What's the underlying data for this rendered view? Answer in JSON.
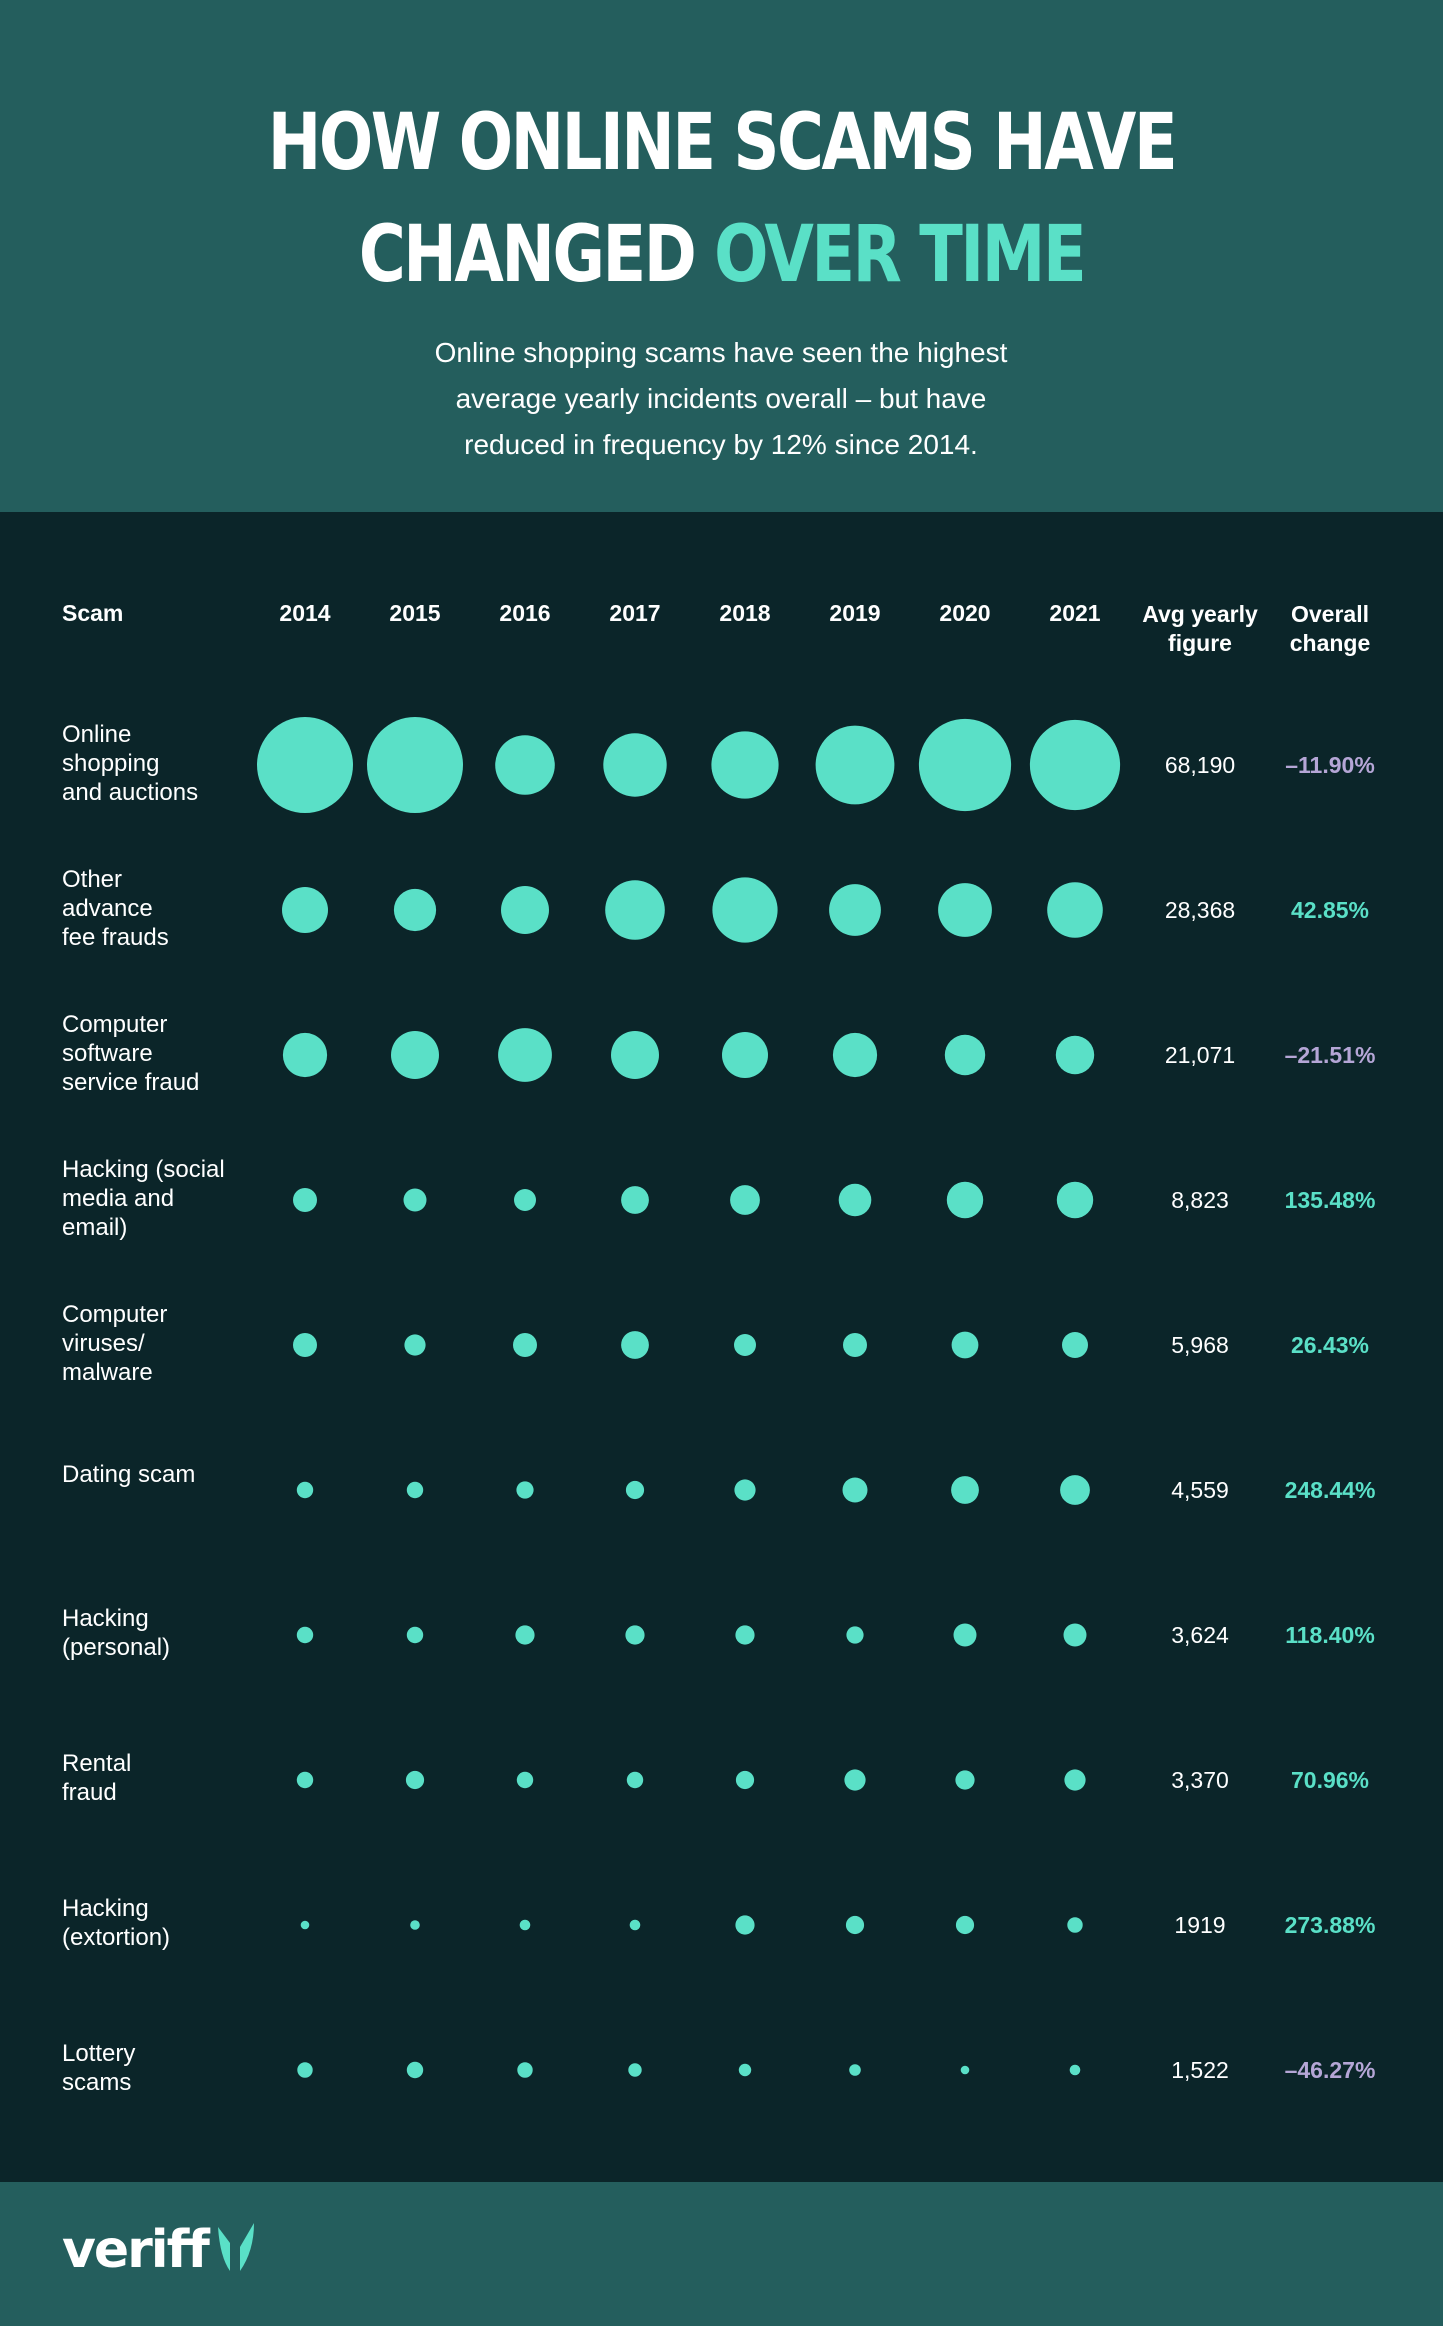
{
  "header": {
    "title_line1": "HOW ONLINE SCAMS HAVE",
    "title_line2_a": "CHANGED ",
    "title_line2_b": "OVER TIME",
    "subtitle_line1": "Online shopping scams have seen the highest",
    "subtitle_line2": "average yearly incidents overall – but have",
    "subtitle_line3": "reduced in frequency by 12% since 2014."
  },
  "colors": {
    "header_bg": "#245e5d",
    "chart_bg": "#0b2529",
    "accent": "#5ae0c7",
    "bubble": "#5ae0c7",
    "negative": "#b5a6d6",
    "positive": "#5ae0c7"
  },
  "columns": {
    "scam": "Scam",
    "years": [
      "2014",
      "2015",
      "2016",
      "2017",
      "2018",
      "2019",
      "2020",
      "2021"
    ],
    "avg_line1": "Avg yearly",
    "avg_line2": "figure",
    "change_line1": "Overall",
    "change_line2": "change"
  },
  "chart_data": {
    "type": "scatter",
    "encoding": "bubble size = relative yearly incidents",
    "years": [
      "2014",
      "2015",
      "2016",
      "2017",
      "2018",
      "2019",
      "2020",
      "2021"
    ],
    "rows": [
      {
        "label_lines": [
          "Online",
          "shopping",
          "and auctions"
        ],
        "sizes": [
          1.0,
          1.0,
          0.62,
          0.66,
          0.7,
          0.82,
          0.96,
          0.94
        ],
        "avg": "68,190",
        "change": "–11.90%",
        "negative": true
      },
      {
        "label_lines": [
          "Other",
          "advance",
          "fee frauds"
        ],
        "sizes": [
          0.48,
          0.44,
          0.5,
          0.62,
          0.68,
          0.54,
          0.56,
          0.58
        ],
        "avg": "28,368",
        "change": "42.85%",
        "negative": false
      },
      {
        "label_lines": [
          "Computer",
          "software",
          "service fraud"
        ],
        "sizes": [
          0.46,
          0.5,
          0.56,
          0.5,
          0.48,
          0.46,
          0.42,
          0.4
        ],
        "avg": "21,071",
        "change": "–21.51%",
        "negative": true
      },
      {
        "label_lines": [
          "Hacking (social",
          "media and",
          "email)"
        ],
        "sizes": [
          0.25,
          0.24,
          0.23,
          0.29,
          0.31,
          0.34,
          0.38,
          0.38
        ],
        "avg": "8,823",
        "change": "135.48%",
        "negative": false
      },
      {
        "label_lines": [
          "Computer",
          "viruses/",
          "malware"
        ],
        "sizes": [
          0.25,
          0.22,
          0.25,
          0.29,
          0.23,
          0.25,
          0.28,
          0.27
        ],
        "avg": "5,968",
        "change": "26.43%",
        "negative": false
      },
      {
        "label_lines": [
          "Dating scam"
        ],
        "sizes": [
          0.17,
          0.17,
          0.18,
          0.19,
          0.22,
          0.26,
          0.29,
          0.31
        ],
        "avg": "4,559",
        "change": "248.44%",
        "negative": false
      },
      {
        "label_lines": [
          "Hacking",
          "(personal)"
        ],
        "sizes": [
          0.17,
          0.17,
          0.2,
          0.2,
          0.2,
          0.18,
          0.24,
          0.24
        ],
        "avg": "3,624",
        "change": "118.40%",
        "negative": false
      },
      {
        "label_lines": [
          "Rental",
          "fraud"
        ],
        "sizes": [
          0.17,
          0.19,
          0.17,
          0.17,
          0.19,
          0.22,
          0.2,
          0.22
        ],
        "avg": "3,370",
        "change": "70.96%",
        "negative": false
      },
      {
        "label_lines": [
          "Hacking",
          "(extortion)"
        ],
        "sizes": [
          0.09,
          0.1,
          0.11,
          0.11,
          0.2,
          0.19,
          0.19,
          0.16
        ],
        "avg": "1919",
        "change": "273.88%",
        "negative": false
      },
      {
        "label_lines": [
          "Lottery",
          "scams"
        ],
        "sizes": [
          0.16,
          0.17,
          0.16,
          0.14,
          0.13,
          0.12,
          0.09,
          0.11
        ],
        "avg": "1,522",
        "change": "–46.27%",
        "negative": true
      }
    ]
  },
  "footer": {
    "logo": "veriff"
  }
}
